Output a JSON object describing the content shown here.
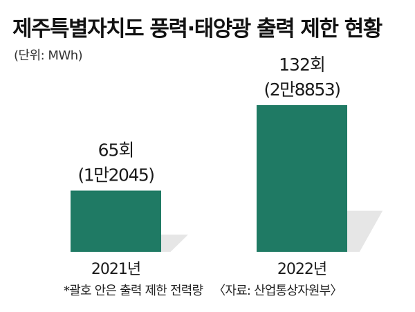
{
  "title": "제주특별자치도 풍력·태양광 출력 제한 현황",
  "unit": "(단위: MWh)",
  "note": "*괄호 안은 출력 제한 전력량",
  "source": "〈자료: 산업통상자원부〉",
  "colors": {
    "bar": "#1f7a64",
    "shadow": "#e6e6e6"
  },
  "chart_data": {
    "type": "bar",
    "categories": [
      "2021년",
      "2022년"
    ],
    "series": [
      {
        "values": [
          12045,
          28853
        ]
      }
    ],
    "count_labels": [
      "65회",
      "132회"
    ],
    "value_labels": [
      "(1만2045)",
      "(2만8853)"
    ],
    "ylabel": "MWh",
    "ylim": [
      0,
      28853
    ]
  }
}
